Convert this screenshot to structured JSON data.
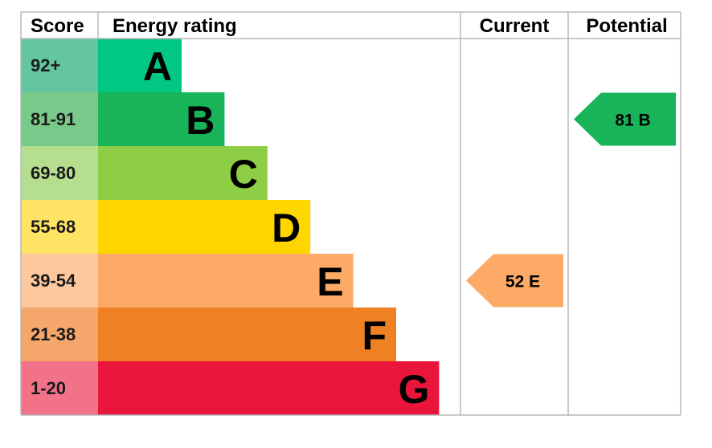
{
  "chart_data": {
    "type": "table",
    "headers": {
      "score": "Score",
      "rating": "Energy rating",
      "current": "Current",
      "potential": "Potential"
    },
    "bands": [
      {
        "score": "92+",
        "letter": "A",
        "color": "#00c781",
        "score_color": "#63c6a0"
      },
      {
        "score": "81-91",
        "letter": "B",
        "color": "#19b459",
        "score_color": "#79c98a"
      },
      {
        "score": "69-80",
        "letter": "C",
        "color": "#8dce46",
        "score_color": "#b5df8f"
      },
      {
        "score": "55-68",
        "letter": "D",
        "color": "#ffd500",
        "score_color": "#ffe364"
      },
      {
        "score": "39-54",
        "letter": "E",
        "color": "#fcaa65",
        "score_color": "#fdc89d"
      },
      {
        "score": "21-38",
        "letter": "F",
        "color": "#ef8023",
        "score_color": "#f5a66a"
      },
      {
        "score": "1-20",
        "letter": "G",
        "color": "#e9153b",
        "score_color": "#f27289"
      }
    ],
    "current": {
      "value": 52,
      "letter": "E",
      "label": "52  E",
      "color": "#fcaa65"
    },
    "potential": {
      "value": 81,
      "letter": "B",
      "label": "81  B",
      "color": "#19b459"
    }
  }
}
